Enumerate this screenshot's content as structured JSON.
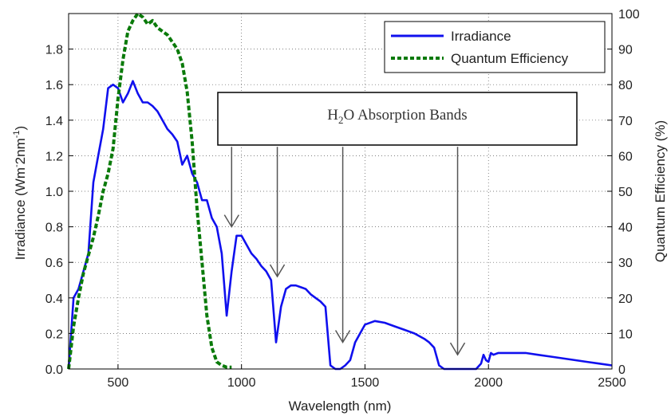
{
  "chart_data": {
    "type": "line",
    "xlabel": "Wavelength (nm)",
    "ylabel_left": {
      "main": "Irradiance (Wm",
      "sup1": "-",
      "mid": "2nm",
      "sup2": "-1",
      "end": ")"
    },
    "ylabel_right": "Quantum Efficiency (%)",
    "xlim": [
      300,
      2500
    ],
    "ylim_left": [
      0,
      2.0
    ],
    "ylim_right": [
      0,
      100
    ],
    "x_ticks": [
      500,
      1000,
      1500,
      2000,
      2500
    ],
    "y_ticks_left": [
      "0.0",
      "0.2",
      "0.4",
      "0.6",
      "0.8",
      "1.0",
      "1.2",
      "1.4",
      "1.6",
      "1.8"
    ],
    "y_ticks_right": [
      0,
      10,
      20,
      30,
      40,
      50,
      60,
      70,
      80,
      90,
      100
    ],
    "grid": true,
    "legend": {
      "position": "top-right",
      "entries": [
        "Irradiance",
        "Quantum Efficiency"
      ]
    },
    "colors": {
      "irradiance": "#1010ee",
      "qe": "#0a7a0a"
    },
    "series": [
      {
        "name": "Irradiance",
        "axis": "left",
        "style": "solid",
        "x": [
          300,
          320,
          340,
          360,
          380,
          400,
          420,
          440,
          460,
          480,
          500,
          520,
          540,
          560,
          580,
          600,
          620,
          640,
          660,
          680,
          700,
          720,
          740,
          760,
          780,
          800,
          820,
          840,
          860,
          880,
          900,
          920,
          940,
          960,
          980,
          1000,
          1020,
          1040,
          1060,
          1080,
          1100,
          1120,
          1140,
          1160,
          1180,
          1200,
          1220,
          1240,
          1260,
          1280,
          1300,
          1320,
          1340,
          1360,
          1380,
          1400,
          1420,
          1440,
          1460,
          1480,
          1500,
          1540,
          1580,
          1620,
          1660,
          1700,
          1740,
          1760,
          1780,
          1800,
          1820,
          1850,
          1900,
          1950,
          1970,
          1980,
          1990,
          2000,
          2010,
          2020,
          2040,
          2100,
          2150,
          2200,
          2250,
          2300,
          2350,
          2400,
          2450,
          2500
        ],
        "y": [
          0.0,
          0.4,
          0.45,
          0.55,
          0.65,
          1.05,
          1.2,
          1.35,
          1.58,
          1.6,
          1.58,
          1.5,
          1.55,
          1.62,
          1.55,
          1.5,
          1.5,
          1.48,
          1.45,
          1.4,
          1.35,
          1.32,
          1.28,
          1.15,
          1.2,
          1.1,
          1.05,
          0.95,
          0.95,
          0.85,
          0.8,
          0.65,
          0.3,
          0.55,
          0.75,
          0.75,
          0.7,
          0.65,
          0.62,
          0.58,
          0.55,
          0.5,
          0.15,
          0.35,
          0.45,
          0.47,
          0.47,
          0.46,
          0.45,
          0.42,
          0.4,
          0.38,
          0.35,
          0.02,
          0.0,
          0.0,
          0.02,
          0.05,
          0.15,
          0.2,
          0.25,
          0.27,
          0.26,
          0.24,
          0.22,
          0.2,
          0.17,
          0.15,
          0.12,
          0.02,
          0.0,
          0.0,
          0.0,
          0.0,
          0.03,
          0.08,
          0.05,
          0.04,
          0.09,
          0.08,
          0.09,
          0.09,
          0.09,
          0.08,
          0.07,
          0.06,
          0.05,
          0.04,
          0.03,
          0.02
        ]
      },
      {
        "name": "Quantum Efficiency",
        "axis": "right",
        "style": "dashed",
        "x": [
          300,
          320,
          340,
          360,
          380,
          400,
          420,
          440,
          460,
          480,
          500,
          520,
          540,
          560,
          580,
          600,
          620,
          640,
          660,
          680,
          700,
          720,
          740,
          760,
          780,
          800,
          820,
          840,
          860,
          880,
          900,
          920,
          940,
          960
        ],
        "y": [
          0,
          12,
          20,
          27,
          32,
          37,
          43,
          50,
          55,
          62,
          76,
          87,
          95,
          98,
          100,
          99,
          97,
          98,
          96,
          95,
          94,
          92,
          90,
          86,
          78,
          64,
          45,
          30,
          15,
          6,
          2,
          1,
          0.5,
          0.5
        ]
      }
    ],
    "annotation": {
      "pre": "H",
      "sub": "2",
      "post": "O Absorption Bands"
    },
    "arrows": [
      {
        "x_from": 960,
        "y_from": 1.25,
        "x_to": 960,
        "y_to": 0.8
      },
      {
        "x_from": 1145,
        "y_from": 1.25,
        "x_to": 1145,
        "y_to": 0.52
      },
      {
        "x_from": 1410,
        "y_from": 1.25,
        "x_to": 1410,
        "y_to": 0.15
      },
      {
        "x_from": 1875,
        "y_from": 1.25,
        "x_to": 1875,
        "y_to": 0.08
      }
    ]
  }
}
